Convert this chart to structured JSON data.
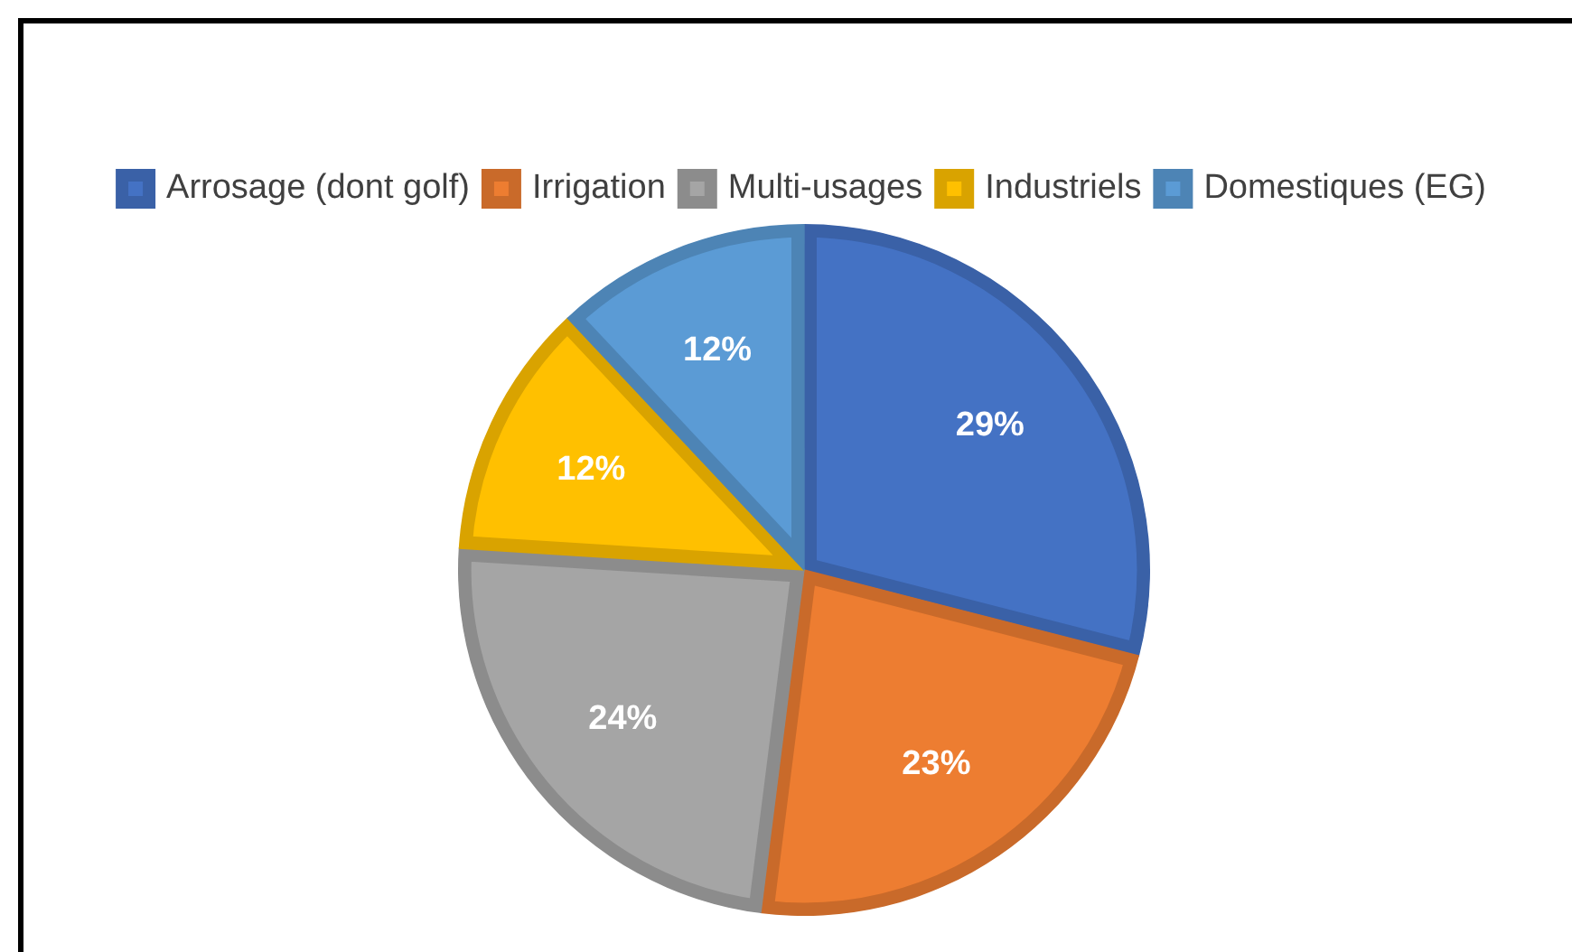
{
  "chart_data": {
    "type": "pie",
    "categories": [
      "Arrosage (dont golf)",
      "Irrigation",
      "Multi-usages",
      "Industriels",
      "Domestiques (EG)"
    ],
    "values": [
      29,
      23,
      24,
      12,
      12
    ],
    "colors": [
      "#4472c4",
      "#ed7d31",
      "#a5a5a5",
      "#ffc000",
      "#5b9bd5"
    ],
    "value_labels": [
      "29%",
      "23%",
      "24%",
      "12%",
      "12%"
    ],
    "legend": "top"
  }
}
